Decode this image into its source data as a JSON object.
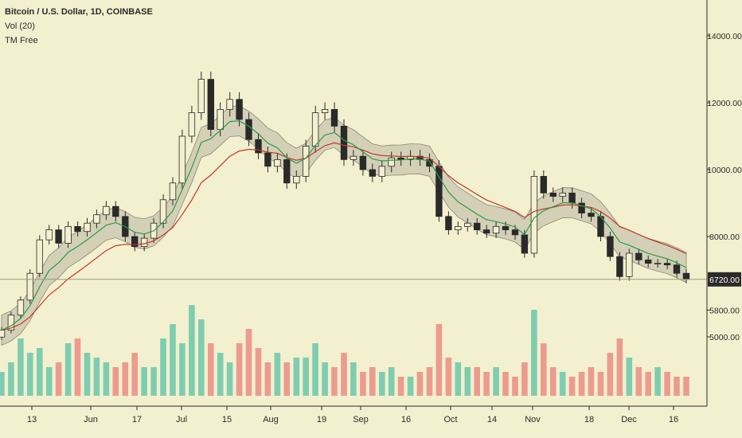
{
  "legend": {
    "symbol": "Bitcoin / U.S. Dollar, 1D, COINBASE",
    "volume": "Vol (20)",
    "indicator": "TM Free"
  },
  "colors": {
    "background": "#f3f0cf",
    "up_candle": "#f3f0cf",
    "candle_outline": "#2a2a2a",
    "vol_up": "#7fcdb1",
    "vol_down": "#eb9c8e",
    "ema_fast": "#2e9a4a",
    "ema_slow": "#c0392b",
    "band_fill": "#b8b6a4",
    "price_line": "#9a9a7a",
    "last_price_bg": "#2a2a2a"
  },
  "chart_data": {
    "type": "candlestick",
    "symbol": "Bitcoin / U.S. Dollar",
    "interval": "1D",
    "exchange": "COINBASE",
    "last_price": 6720.0,
    "price_axis_ticks": [
      14000,
      12000,
      10000,
      8000,
      5800,
      5000
    ],
    "price_axis_labels": [
      "14000.00",
      "12000.00",
      "10000.00",
      "8000.00",
      "6720.00",
      "5800.00",
      "5000.00"
    ],
    "time_axis_labels": [
      "13",
      "Jun",
      "17",
      "Jul",
      "15",
      "Aug",
      "19",
      "Sep",
      "16",
      "Oct",
      "14",
      "Nov",
      "18",
      "Dec",
      "16"
    ],
    "price_series_close": [
      5200,
      5650,
      6100,
      6900,
      7900,
      8200,
      7800,
      8300,
      8150,
      8400,
      8650,
      8900,
      8600,
      8000,
      7700,
      7950,
      8400,
      9100,
      9600,
      11000,
      11700,
      12700,
      11200,
      11800,
      12100,
      11500,
      10900,
      10500,
      10100,
      10300,
      9600,
      9800,
      10700,
      11700,
      11800,
      11300,
      10300,
      10400,
      10000,
      9800,
      10100,
      10350,
      10300,
      10400,
      10300,
      10100,
      8600,
      8200,
      8300,
      8400,
      8200,
      8100,
      8300,
      8200,
      8050,
      7500,
      9800,
      9300,
      9200,
      9300,
      9000,
      8700,
      8600,
      8000,
      7400,
      6800,
      7500,
      7300,
      7200,
      7200,
      7150,
      6900,
      6720
    ],
    "volume_ratio": [
      0.25,
      0.35,
      0.6,
      0.45,
      0.5,
      0.3,
      0.35,
      0.55,
      0.6,
      0.45,
      0.4,
      0.35,
      0.3,
      0.35,
      0.45,
      0.3,
      0.3,
      0.6,
      0.75,
      0.55,
      0.95,
      0.8,
      0.55,
      0.45,
      0.35,
      0.55,
      0.7,
      0.5,
      0.35,
      0.45,
      0.35,
      0.4,
      0.4,
      0.55,
      0.35,
      0.3,
      0.45,
      0.35,
      0.25,
      0.3,
      0.25,
      0.3,
      0.2,
      0.2,
      0.25,
      0.3,
      0.75,
      0.4,
      0.35,
      0.3,
      0.3,
      0.25,
      0.3,
      0.25,
      0.2,
      0.35,
      0.9,
      0.55,
      0.3,
      0.25,
      0.2,
      0.25,
      0.3,
      0.25,
      0.45,
      0.6,
      0.4,
      0.3,
      0.25,
      0.3,
      0.25,
      0.2,
      0.2
    ],
    "grid": false,
    "legend_position": "top-left"
  }
}
